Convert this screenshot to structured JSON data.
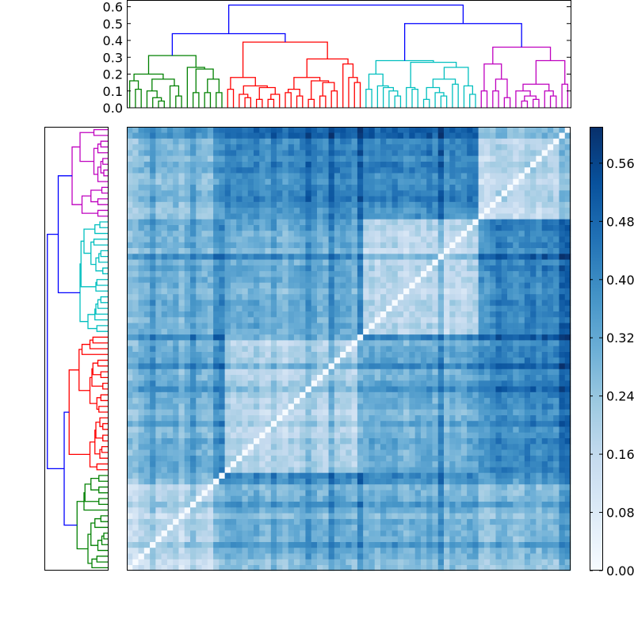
{
  "chart_data": {
    "type": "heatmap",
    "title": "",
    "description_kind": "clustered distance matrix with dendrograms",
    "top_dendrogram": {
      "ylim": [
        0,
        0.64
      ],
      "yticks": [
        "0.0",
        "0.1",
        "0.2",
        "0.3",
        "0.4",
        "0.5",
        "0.6"
      ],
      "ytick_values": [
        0,
        0.1,
        0.2,
        0.3,
        0.4,
        0.5,
        0.6
      ]
    },
    "left_dendrogram": {
      "xlim": [
        0,
        0.64
      ]
    },
    "link_color_above_threshold": "#0000ff",
    "top_tree": [
      0.61,
      [
        0.44,
        "c0",
        "c1"
      ],
      [
        0.5,
        "c2",
        "c3"
      ]
    ],
    "clusters": [
      {
        "name": "green",
        "color": "#008000",
        "tree": [
          0.31,
          [
            0.2,
            [
              0.16,
              1,
              [
                0.11,
                1,
                1
              ]
            ],
            [
              0.17,
              [
                0.1,
                1,
                [
                  0.06,
                  1,
                  [
                    0.04,
                    1,
                    1
                  ]
                ]
              ],
              [
                0.13,
                1,
                [
                  0.07,
                  1,
                  1
                ]
              ]
            ]
          ],
          [
            0.24,
            1,
            [
              0.23,
              [
                0.09,
                1,
                1
              ],
              [
                0.17,
                [
                  0.09,
                  1,
                  1
                ],
                [
                  0.09,
                  1,
                  1
                ]
              ]
            ]
          ]
        ]
      },
      {
        "name": "red",
        "color": "#ff0000",
        "tree": [
          0.39,
          [
            0.18,
            [
              0.11,
              1,
              1
            ],
            [
              0.13,
              [
                0.08,
                1,
                [
                  0.06,
                  1,
                  1
                ]
              ],
              [
                0.12,
                [
                  0.05,
                  1,
                  1
                ],
                [
                  0.08,
                  [
                    0.05,
                    1,
                    1
                  ],
                  1
                ]
              ]
            ]
          ],
          [
            0.29,
            [
              0.18,
              [
                0.11,
                [
                  0.09,
                  1,
                  1
                ],
                [
                  0.07,
                  1,
                  1
                ]
              ],
              [
                0.16,
                [
                  0.05,
                  1,
                  1
                ],
                [
                  0.15,
                  [
                    0.07,
                    1,
                    1
                  ],
                  [
                    0.1,
                    1,
                    1
                  ]
                ]
              ]
            ],
            [
              0.26,
              1,
              [
                0.18,
                1,
                [
                  0.15,
                  1,
                  1
                ]
              ]
            ]
          ]
        ]
      },
      {
        "name": "cyan",
        "color": "#00bfbf",
        "tree": [
          0.28,
          [
            0.2,
            [
              0.11,
              1,
              1
            ],
            [
              0.13,
              1,
              [
                0.12,
                1,
                [
                  0.1,
                  1,
                  [
                    0.07,
                    1,
                    1
                  ]
                ]
              ]
            ]
          ],
          [
            0.27,
            [
              0.12,
              1,
              [
                0.11,
                1,
                1
              ]
            ],
            [
              0.24,
              [
                0.17,
                [
                  0.12,
                  [
                    0.05,
                    1,
                    1
                  ],
                  [
                    0.09,
                    1,
                    [
                      0.07,
                      1,
                      1
                    ]
                  ]
                ],
                [
                  0.14,
                  1,
                  1
                ]
              ],
              [
                0.13,
                1,
                [
                  0.08,
                  1,
                  1
                ]
              ]
            ]
          ]
        ]
      },
      {
        "name": "magenta",
        "color": "#bf00bf",
        "tree": [
          0.36,
          [
            0.26,
            [
              0.1,
              1,
              1
            ],
            [
              0.17,
              [
                0.1,
                1,
                1
              ],
              [
                0.06,
                1,
                1
              ]
            ]
          ],
          [
            0.28,
            [
              0.14,
              [
                0.1,
                1,
                [
                  0.07,
                  [
                    0.04,
                    1,
                    1
                  ],
                  [
                    0.05,
                    1,
                    1
                  ]
                ]
              ],
              [
                0.1,
                1,
                [
                  0.07,
                  1,
                  1
                ]
              ]
            ],
            [
              0.14,
              1,
              1
            ]
          ]
        ]
      }
    ],
    "block_means": [
      [
        0.17,
        0.3,
        0.29,
        0.26
      ],
      [
        0.3,
        0.2,
        0.31,
        0.4
      ],
      [
        0.29,
        0.31,
        0.17,
        0.4
      ],
      [
        0.26,
        0.4,
        0.4,
        0.17
      ]
    ],
    "noise_seed": 12345,
    "colormap": [
      "#f7fbff",
      "#deebf7",
      "#c6dbef",
      "#9ecae1",
      "#6baed6",
      "#4292c6",
      "#2171b5",
      "#08519c",
      "#08306b"
    ],
    "vmin": 0,
    "vmax": 0.61,
    "colorbar": {
      "ticks": [
        "0.00",
        "0.08",
        "0.16",
        "0.24",
        "0.32",
        "0.40",
        "0.48",
        "0.56"
      ],
      "tick_values": [
        0,
        0.08,
        0.16,
        0.24,
        0.32,
        0.4,
        0.48,
        0.56
      ]
    }
  }
}
